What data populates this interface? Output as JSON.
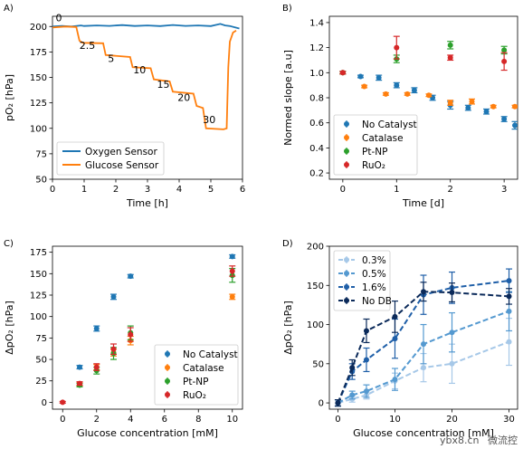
{
  "watermark": {
    "site": "ybx8.cn",
    "account": "微流控"
  },
  "chart_data": [
    {
      "panel": "A)",
      "type": "line",
      "xlabel": "Time [h]",
      "ylabel": "pO₂ [hPa]",
      "xlim": [
        0,
        6
      ],
      "ylim": [
        50,
        210
      ],
      "xticks": [
        0,
        1,
        2,
        3,
        4,
        5,
        6
      ],
      "yticks": [
        50,
        75,
        100,
        125,
        150,
        175,
        200
      ],
      "legend": {
        "position": "lower-left"
      },
      "series": [
        {
          "name": "Oxygen Sensor",
          "color": "#1f77b4",
          "points": [
            [
              0,
              200
            ],
            [
              0.3,
              200.5
            ],
            [
              0.6,
              200
            ],
            [
              0.9,
              201
            ],
            [
              1.0,
              200.5
            ],
            [
              1.4,
              201
            ],
            [
              1.8,
              200.6
            ],
            [
              2.2,
              201.4
            ],
            [
              2.6,
              200.5
            ],
            [
              3.0,
              201
            ],
            [
              3.4,
              200.4
            ],
            [
              3.8,
              201.5
            ],
            [
              4.2,
              200.6
            ],
            [
              4.6,
              201
            ],
            [
              5.0,
              200.4
            ],
            [
              5.3,
              202.5
            ],
            [
              5.45,
              201
            ],
            [
              5.6,
              200.5
            ],
            [
              5.9,
              198
            ]
          ]
        },
        {
          "name": "Glucose Sensor",
          "color": "#ff7f0e",
          "points": [
            [
              0,
              199
            ],
            [
              0.4,
              200
            ],
            [
              0.75,
              199.5
            ],
            [
              0.85,
              186
            ],
            [
              0.95,
              184
            ],
            [
              1.6,
              183.5
            ],
            [
              1.68,
              172
            ],
            [
              2.45,
              170
            ],
            [
              2.53,
              160
            ],
            [
              3.1,
              159
            ],
            [
              3.2,
              148
            ],
            [
              3.7,
              146
            ],
            [
              3.8,
              136
            ],
            [
              4.45,
              134
            ],
            [
              4.55,
              122
            ],
            [
              4.75,
              120
            ],
            [
              4.85,
              100
            ],
            [
              5.4,
              99
            ],
            [
              5.5,
              100
            ],
            [
              5.55,
              160
            ],
            [
              5.6,
              185
            ],
            [
              5.7,
              194
            ],
            [
              5.8,
              196
            ]
          ]
        }
      ],
      "annotations": [
        {
          "text": "0",
          "x": 0.1,
          "y": 205
        },
        {
          "text": "2.5",
          "x": 0.85,
          "y": 178
        },
        {
          "text": "5",
          "x": 1.75,
          "y": 165
        },
        {
          "text": "10",
          "x": 2.55,
          "y": 154
        },
        {
          "text": "15",
          "x": 3.3,
          "y": 140
        },
        {
          "text": "20",
          "x": 3.95,
          "y": 127
        },
        {
          "text": "30",
          "x": 4.75,
          "y": 105
        }
      ]
    },
    {
      "panel": "B)",
      "type": "scatter",
      "xlabel": "Time [d]",
      "ylabel": "Normed slope [a.u]",
      "xlim": [
        -0.25,
        3.25
      ],
      "ylim": [
        0.15,
        1.45
      ],
      "xticks": [
        0,
        1,
        2,
        3
      ],
      "yticks": [
        0.2,
        0.4,
        0.6,
        0.8,
        1.0,
        1.2,
        1.4
      ],
      "legend": {
        "position": "lower-left"
      },
      "series": [
        {
          "name": "No Catalyst",
          "color": "#1f77b4",
          "points": [
            [
              0,
              1.0,
              0.01
            ],
            [
              0.33,
              0.97,
              0.01
            ],
            [
              0.67,
              0.96,
              0.02
            ],
            [
              1.0,
              0.9,
              0.02
            ],
            [
              1.33,
              0.86,
              0.02
            ],
            [
              1.67,
              0.8,
              0.02
            ],
            [
              2.0,
              0.74,
              0.03
            ],
            [
              2.33,
              0.72,
              0.02
            ],
            [
              2.67,
              0.69,
              0.02
            ],
            [
              3.0,
              0.63,
              0.02
            ],
            [
              3.2,
              0.58,
              0.03
            ]
          ]
        },
        {
          "name": "Catalase",
          "color": "#ff7f0e",
          "points": [
            [
              0,
              1.0,
              0.01
            ],
            [
              0.4,
              0.89,
              0.01
            ],
            [
              0.8,
              0.83,
              0.01
            ],
            [
              1.2,
              0.83,
              0.01
            ],
            [
              1.6,
              0.82,
              0.01
            ],
            [
              2.0,
              0.76,
              0.02
            ],
            [
              2.4,
              0.77,
              0.02
            ],
            [
              2.8,
              0.73,
              0.01
            ],
            [
              3.2,
              0.73,
              0.01
            ]
          ]
        },
        {
          "name": "Pt-NP",
          "color": "#2ca02c",
          "points": [
            [
              0,
              1.0,
              0.01
            ],
            [
              1.0,
              1.11,
              0.03
            ],
            [
              2.0,
              1.22,
              0.03
            ],
            [
              3.0,
              1.18,
              0.03
            ]
          ]
        },
        {
          "name": "RuO₂",
          "color": "#d62728",
          "points": [
            [
              0,
              1.0,
              0.01
            ],
            [
              1.0,
              1.2,
              0.09
            ],
            [
              2.0,
              1.12,
              0.02
            ],
            [
              3.0,
              1.09,
              0.07
            ]
          ]
        }
      ]
    },
    {
      "panel": "C)",
      "type": "scatter",
      "xlabel": "Glucose concentration [mM]",
      "ylabel": "ΔpO₂ [hPa]",
      "xlim": [
        -0.6,
        10.6
      ],
      "ylim": [
        -8,
        182
      ],
      "xticks": [
        0,
        2,
        4,
        6,
        8,
        10
      ],
      "yticks": [
        0,
        25,
        50,
        75,
        100,
        125,
        150,
        175
      ],
      "legend": {
        "position": "lower-right"
      },
      "series": [
        {
          "name": "No Catalyst",
          "color": "#1f77b4",
          "points": [
            [
              1,
              41,
              2
            ],
            [
              2,
              86,
              3
            ],
            [
              3,
              123,
              3
            ],
            [
              4,
              147,
              2
            ],
            [
              10,
              170,
              2
            ]
          ]
        },
        {
          "name": "Catalase",
          "color": "#ff7f0e",
          "points": [
            [
              1,
              21,
              2
            ],
            [
              2,
              41,
              3
            ],
            [
              3,
              58,
              4
            ],
            [
              4,
              72,
              5
            ],
            [
              10,
              123,
              3
            ]
          ]
        },
        {
          "name": "Pt-NP",
          "color": "#2ca02c",
          "points": [
            [
              1,
              20,
              2
            ],
            [
              2,
              37,
              4
            ],
            [
              3,
              57,
              7
            ],
            [
              4,
              81,
              8
            ],
            [
              10,
              148,
              8
            ]
          ]
        },
        {
          "name": "RuO₂",
          "color": "#d62728",
          "points": [
            [
              0,
              0,
              1
            ],
            [
              1,
              22,
              2
            ],
            [
              2,
              41,
              4
            ],
            [
              3,
              62,
              6
            ],
            [
              4,
              79,
              8
            ],
            [
              10,
              153,
              6
            ]
          ]
        }
      ]
    },
    {
      "panel": "D)",
      "type": "line",
      "xlabel": "Glucose concentration [mM]",
      "ylabel": "ΔpO₂ [hPa]",
      "xlim": [
        -1.5,
        31.5
      ],
      "ylim": [
        -8,
        200
      ],
      "xticks": [
        0,
        10,
        20,
        30
      ],
      "yticks": [
        0,
        50,
        100,
        150,
        200
      ],
      "legend": {
        "position": "top-left"
      },
      "series": [
        {
          "name": "0.3%",
          "color": "#a6c8e8",
          "points": [
            [
              0,
              0,
              4
            ],
            [
              2.5,
              5,
              4
            ],
            [
              5,
              10,
              5
            ],
            [
              10,
              28,
              10
            ],
            [
              15,
              45,
              18
            ],
            [
              20,
              50,
              25
            ],
            [
              30,
              78,
              30
            ]
          ]
        },
        {
          "name": "0.5%",
          "color": "#5499d0",
          "points": [
            [
              0,
              0,
              4
            ],
            [
              2.5,
              10,
              5
            ],
            [
              5,
              15,
              8
            ],
            [
              10,
              30,
              14
            ],
            [
              15,
              75,
              25
            ],
            [
              20,
              90,
              25
            ],
            [
              30,
              117,
              25
            ]
          ]
        },
        {
          "name": "1.6%",
          "color": "#1f5fa8",
          "points": [
            [
              0,
              0,
              4
            ],
            [
              2.5,
              40,
              10
            ],
            [
              5,
              55,
              15
            ],
            [
              10,
              82,
              25
            ],
            [
              15,
              138,
              25
            ],
            [
              20,
              147,
              20
            ],
            [
              30,
              156,
              15
            ]
          ]
        },
        {
          "name": "No DB",
          "color": "#0b2a5a",
          "points": [
            [
              0,
              0,
              4
            ],
            [
              2.5,
              45,
              10
            ],
            [
              5,
              92,
              15
            ],
            [
              10,
              110,
              20
            ],
            [
              15,
              142,
              12
            ],
            [
              20,
              141,
              12
            ],
            [
              30,
              136,
              10
            ]
          ]
        }
      ]
    }
  ]
}
